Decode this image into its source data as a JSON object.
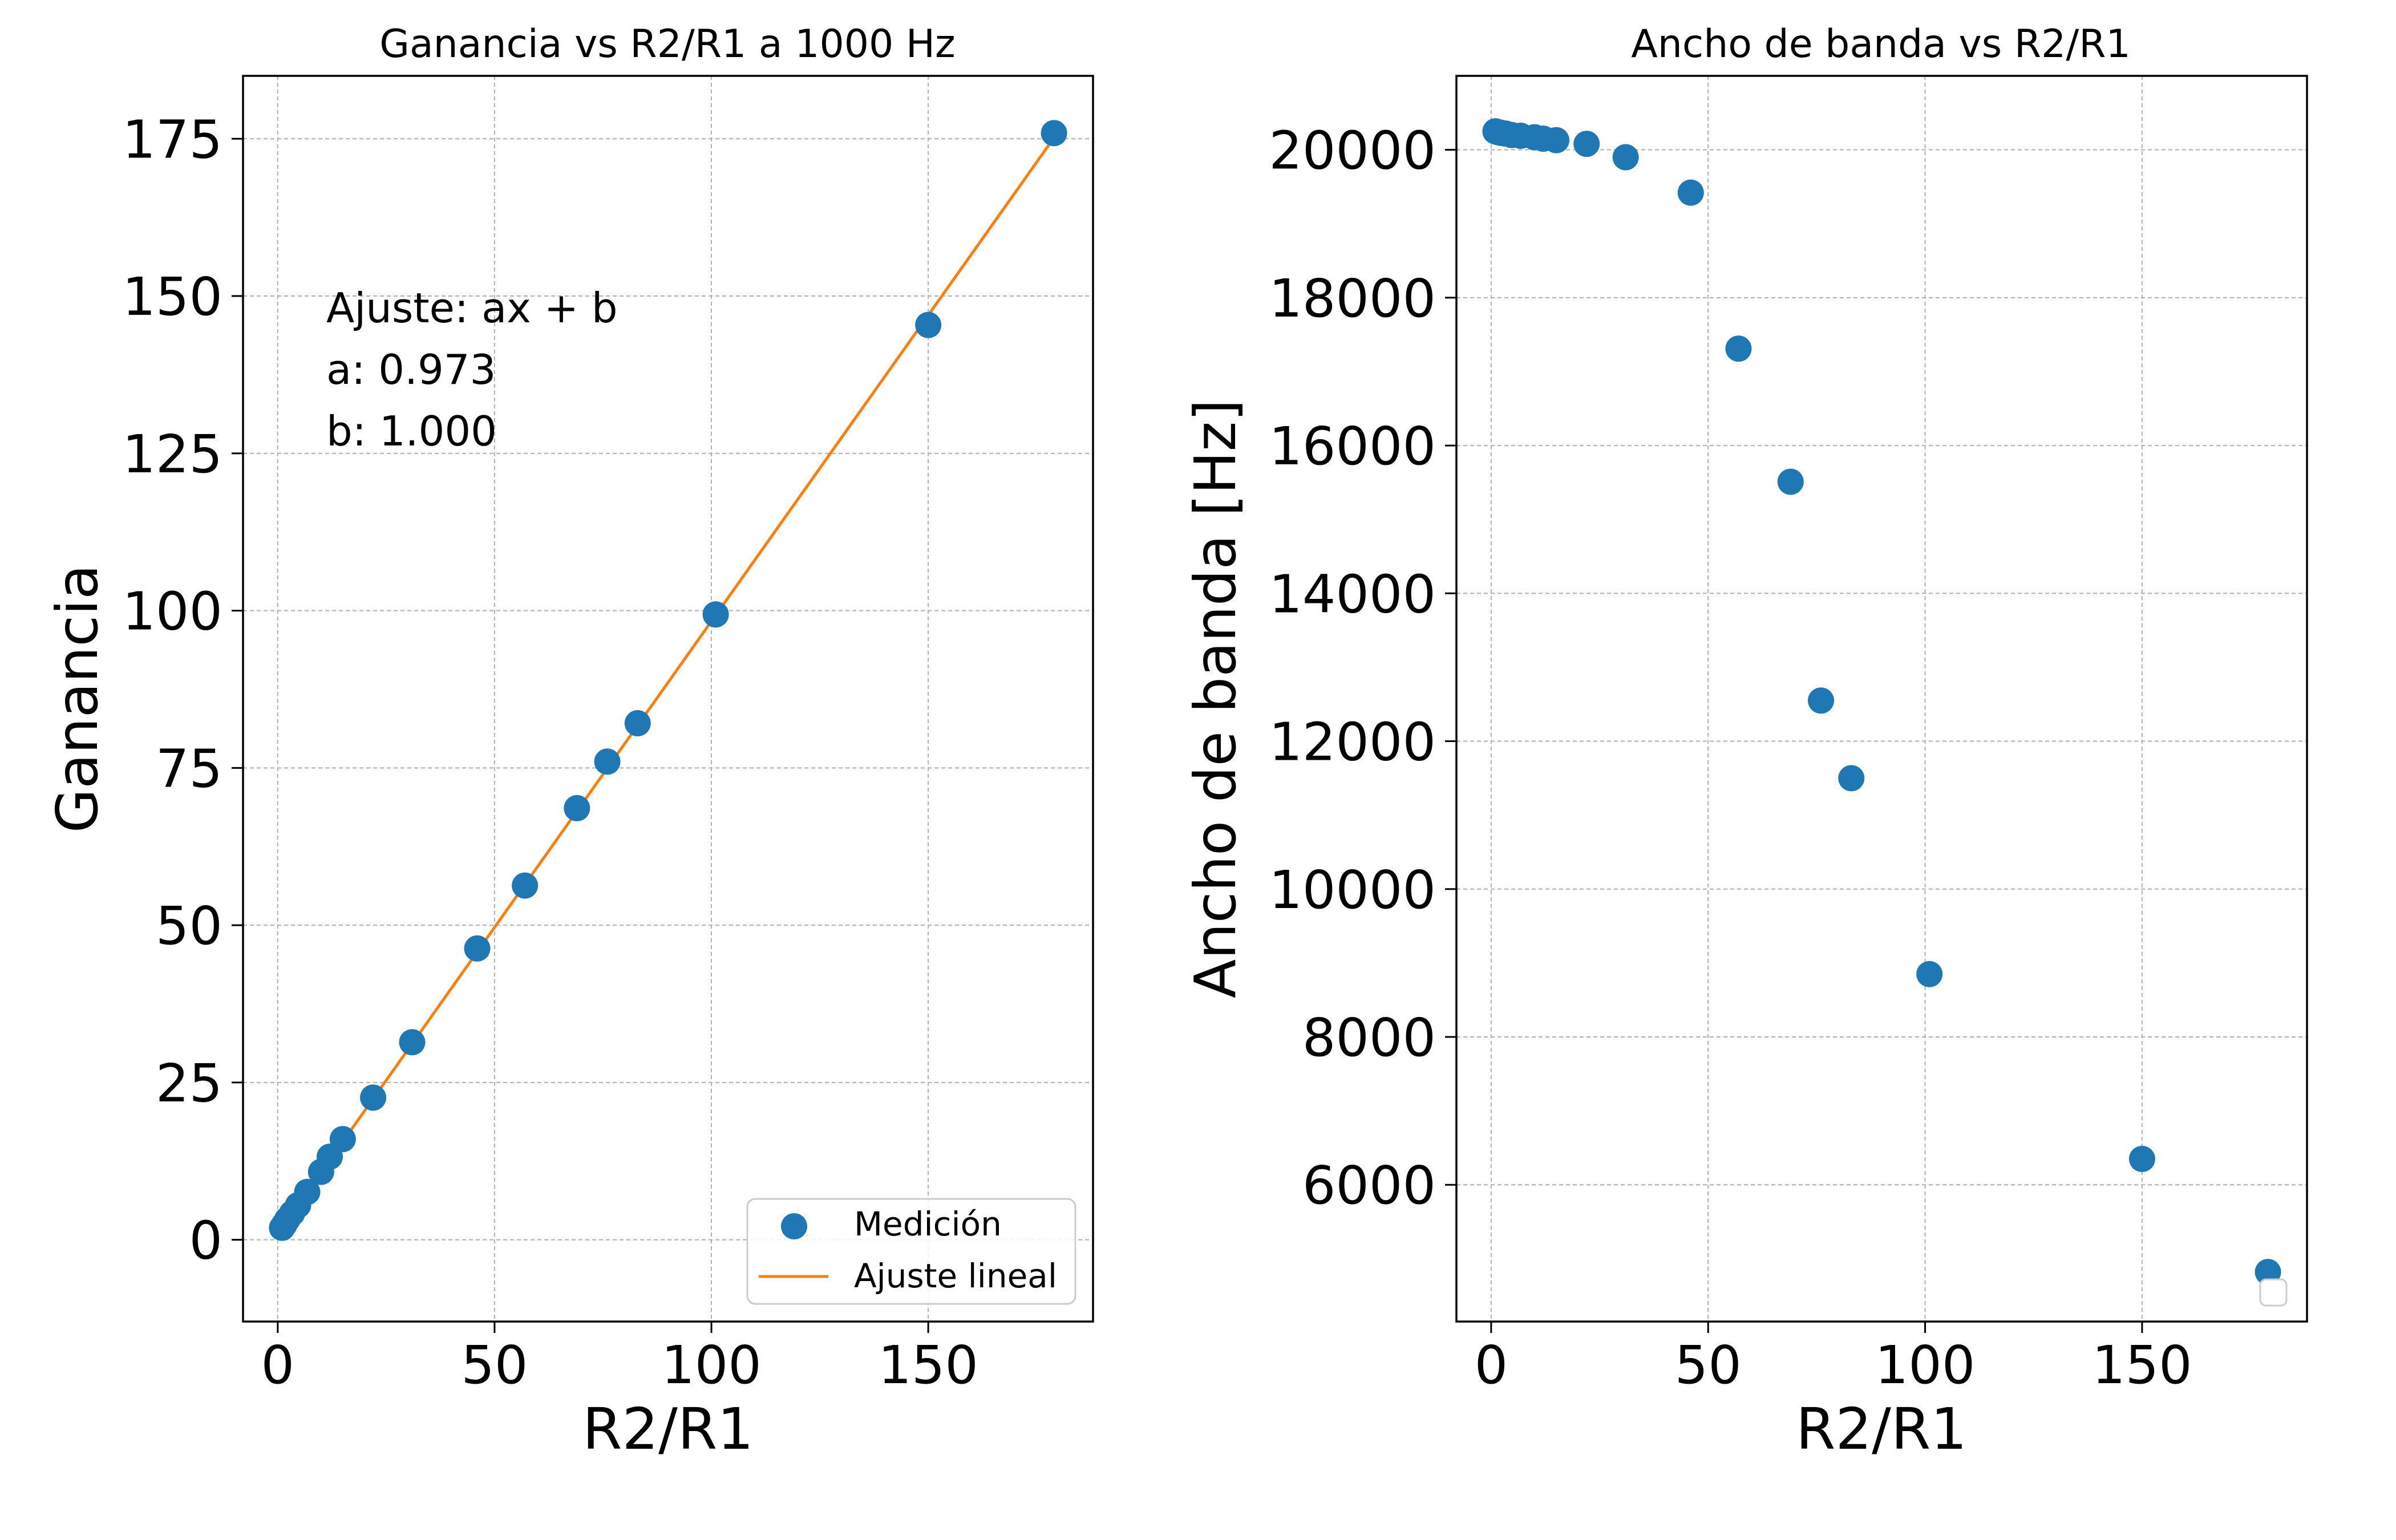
{
  "chart_data": [
    {
      "type": "scatter",
      "title": "Ganancia vs R2/R1 a 1000 Hz",
      "xlabel": "R2/R1",
      "ylabel": "Ganancia",
      "xlim": [
        -8,
        188
      ],
      "ylim": [
        -13,
        185
      ],
      "xticks": [
        0,
        50,
        100,
        150
      ],
      "yticks": [
        0,
        25,
        50,
        75,
        100,
        125,
        150,
        175
      ],
      "xtick_labels": [
        "0",
        "50",
        "100",
        "150"
      ],
      "ytick_labels": [
        "0",
        "25",
        "50",
        "75",
        "100",
        "125",
        "150",
        "175"
      ],
      "grid": true,
      "series": [
        {
          "name": "Medición",
          "kind": "points",
          "color": "#1f77b4",
          "x": [
            1,
            1.5,
            2.2,
            3.3,
            4.7,
            6.8,
            10,
            12,
            15,
            22,
            31,
            46,
            57,
            69,
            76,
            83,
            101,
            150,
            179
          ],
          "y": [
            1.9,
            2.4,
            3.2,
            4.2,
            5.5,
            7.6,
            10.8,
            13.2,
            16.0,
            22.6,
            31.4,
            46.3,
            56.3,
            68.6,
            76.0,
            82.1,
            99.4,
            145.4,
            175.9
          ]
        },
        {
          "name": "Ajuste lineal",
          "kind": "line",
          "color": "#ff7f0e",
          "x": [
            1,
            179
          ],
          "y": [
            1.97,
            175.17
          ]
        }
      ],
      "legend": {
        "position": "lower right",
        "entries": [
          "Medición",
          "Ajuste lineal"
        ]
      },
      "annotation": {
        "line1": "Ajuste: ax + b",
        "line2": "a:  0.973",
        "line3": "b:  1.000"
      }
    },
    {
      "type": "scatter",
      "title": "Ancho de banda vs R2/R1",
      "xlabel": "R2/R1",
      "ylabel": "Ancho de banda [Hz]",
      "xlim": [
        -8,
        188
      ],
      "ylim": [
        4150,
        21000
      ],
      "xticks": [
        0,
        50,
        100,
        150
      ],
      "yticks": [
        6000,
        8000,
        10000,
        12000,
        14000,
        16000,
        18000,
        20000
      ],
      "xtick_labels": [
        "0",
        "50",
        "100",
        "150"
      ],
      "ytick_labels": [
        "6000",
        "8000",
        "10000",
        "12000",
        "14000",
        "16000",
        "18000",
        "20000"
      ],
      "grid": true,
      "legend": {
        "position": "lower right",
        "entries": []
      },
      "series": [
        {
          "kind": "points",
          "color": "#1f77b4",
          "x": [
            1,
            1.5,
            2.2,
            3.3,
            4.7,
            6.8,
            10,
            12,
            15,
            22,
            31,
            46,
            57,
            69,
            76,
            83,
            101,
            150,
            179
          ],
          "y": [
            20250,
            20240,
            20230,
            20220,
            20200,
            20190,
            20170,
            20150,
            20130,
            20080,
            19900,
            19420,
            17310,
            15510,
            12550,
            11500,
            8850,
            6350,
            4820
          ]
        }
      ]
    }
  ]
}
